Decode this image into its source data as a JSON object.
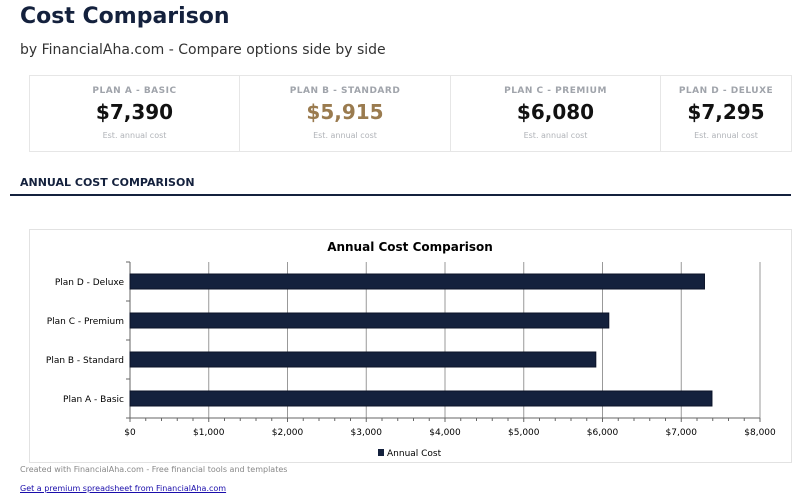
{
  "header": {
    "title": "Cost Comparison",
    "subtitle": "by FinancialAha.com - Compare options side by side"
  },
  "cards": [
    {
      "label": "PLAN A - BASIC",
      "value": "$7,390",
      "note": "Est. annual cost",
      "highlight": false
    },
    {
      "label": "PLAN B - STANDARD",
      "value": "$5,915",
      "note": "Est. annual cost",
      "highlight": true
    },
    {
      "label": "PLAN C - PREMIUM",
      "value": "$6,080",
      "note": "Est. annual cost",
      "highlight": false
    },
    {
      "label": "PLAN D - DELUXE",
      "value": "$7,295",
      "note": "Est. annual cost",
      "highlight": false
    }
  ],
  "colors": {
    "highlight": "#9a7b4f",
    "bar": "#14213d"
  },
  "section_title": "ANNUAL COST COMPARISON",
  "chart_data": {
    "type": "bar",
    "orientation": "horizontal",
    "title": "Annual Cost Comparison",
    "categories": [
      "Plan A - Basic",
      "Plan B - Standard",
      "Plan C - Premium",
      "Plan D - Deluxe"
    ],
    "series": [
      {
        "name": "Annual Cost",
        "values": [
          7390,
          5915,
          6080,
          7295
        ]
      }
    ],
    "xlim": [
      0,
      8000
    ],
    "xticks": [
      0,
      1000,
      2000,
      3000,
      4000,
      5000,
      6000,
      7000,
      8000
    ],
    "xtick_labels": [
      "$0",
      "$1,000",
      "$2,000",
      "$3,000",
      "$4,000",
      "$5,000",
      "$6,000",
      "$7,000",
      "$8,000"
    ],
    "grid": true,
    "legend": "bottom"
  },
  "footer": {
    "credit": "Created with FinancialAha.com - Free financial tools and templates",
    "link": "Get a premium spreadsheet from FinancialAha.com"
  }
}
